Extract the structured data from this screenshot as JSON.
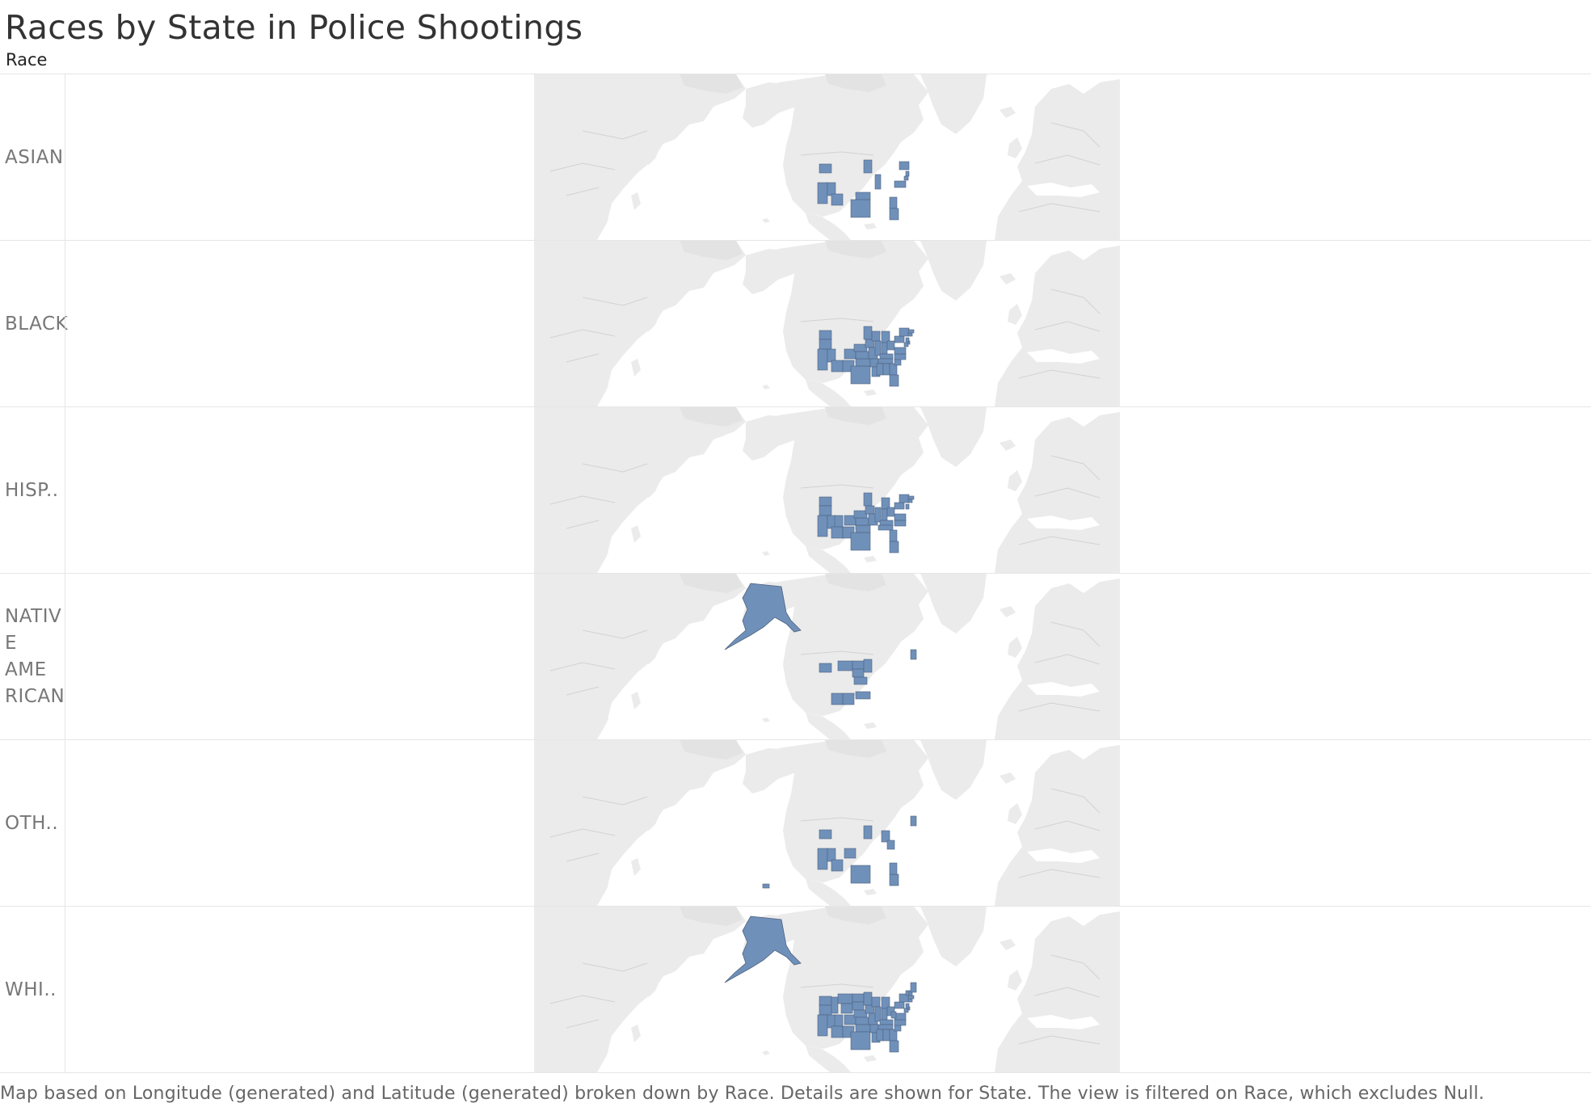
{
  "dashboard": {
    "title": "Races by State in Police Shootings",
    "row_header": "Race",
    "footer": "Map based on Longitude (generated) and Latitude (generated) broken down by Race.  Details are shown for State. The view is filtered on Race, which excludes Null."
  },
  "colors": {
    "land": "#ebebeb",
    "border": "#d2d2d2",
    "highlight": "#6f90b9",
    "highlight_border": "#4f6280",
    "water": "#ffffff"
  },
  "rows": [
    {
      "label": "ASIAN",
      "states": [
        "WA",
        "CA",
        "NV",
        "AZ",
        "TX",
        "MN",
        "IL",
        "OK",
        "GA",
        "FL",
        "NY",
        "NJ",
        "MD",
        "VA"
      ]
    },
    {
      "label": "BLACK",
      "states": [
        "WA",
        "OR",
        "CA",
        "NV",
        "AZ",
        "NM",
        "CO",
        "TX",
        "OK",
        "KS",
        "NE",
        "MN",
        "IA",
        "MO",
        "AR",
        "LA",
        "WI",
        "IL",
        "MI",
        "IN",
        "OH",
        "KY",
        "TN",
        "MS",
        "AL",
        "GA",
        "FL",
        "SC",
        "NC",
        "VA",
        "PA",
        "NY",
        "NJ",
        "MD",
        "DE",
        "CT",
        "MA"
      ]
    },
    {
      "label": "HISP..",
      "states": [
        "WA",
        "OR",
        "CA",
        "NV",
        "UT",
        "AZ",
        "NM",
        "CO",
        "TX",
        "OK",
        "KS",
        "NE",
        "MN",
        "IA",
        "MO",
        "IL",
        "MI",
        "IN",
        "OH",
        "KY",
        "TN",
        "GA",
        "FL",
        "NC",
        "VA",
        "PA",
        "NY",
        "NJ",
        "MA",
        "CT"
      ]
    },
    {
      "label": "NATIV\nE AME\nRICAN",
      "states": [
        "AK",
        "WA",
        "MT",
        "ND",
        "SD",
        "MN",
        "NM",
        "AZ",
        "OK",
        "NE",
        "ME"
      ]
    },
    {
      "label": "OTH..",
      "states": [
        "WA",
        "CA",
        "NV",
        "AZ",
        "TX",
        "MN",
        "CO",
        "MI",
        "OH",
        "FL",
        "GA",
        "ME",
        "HI"
      ]
    },
    {
      "label": "WHI..",
      "states": [
        "ALL",
        "AK"
      ]
    }
  ]
}
